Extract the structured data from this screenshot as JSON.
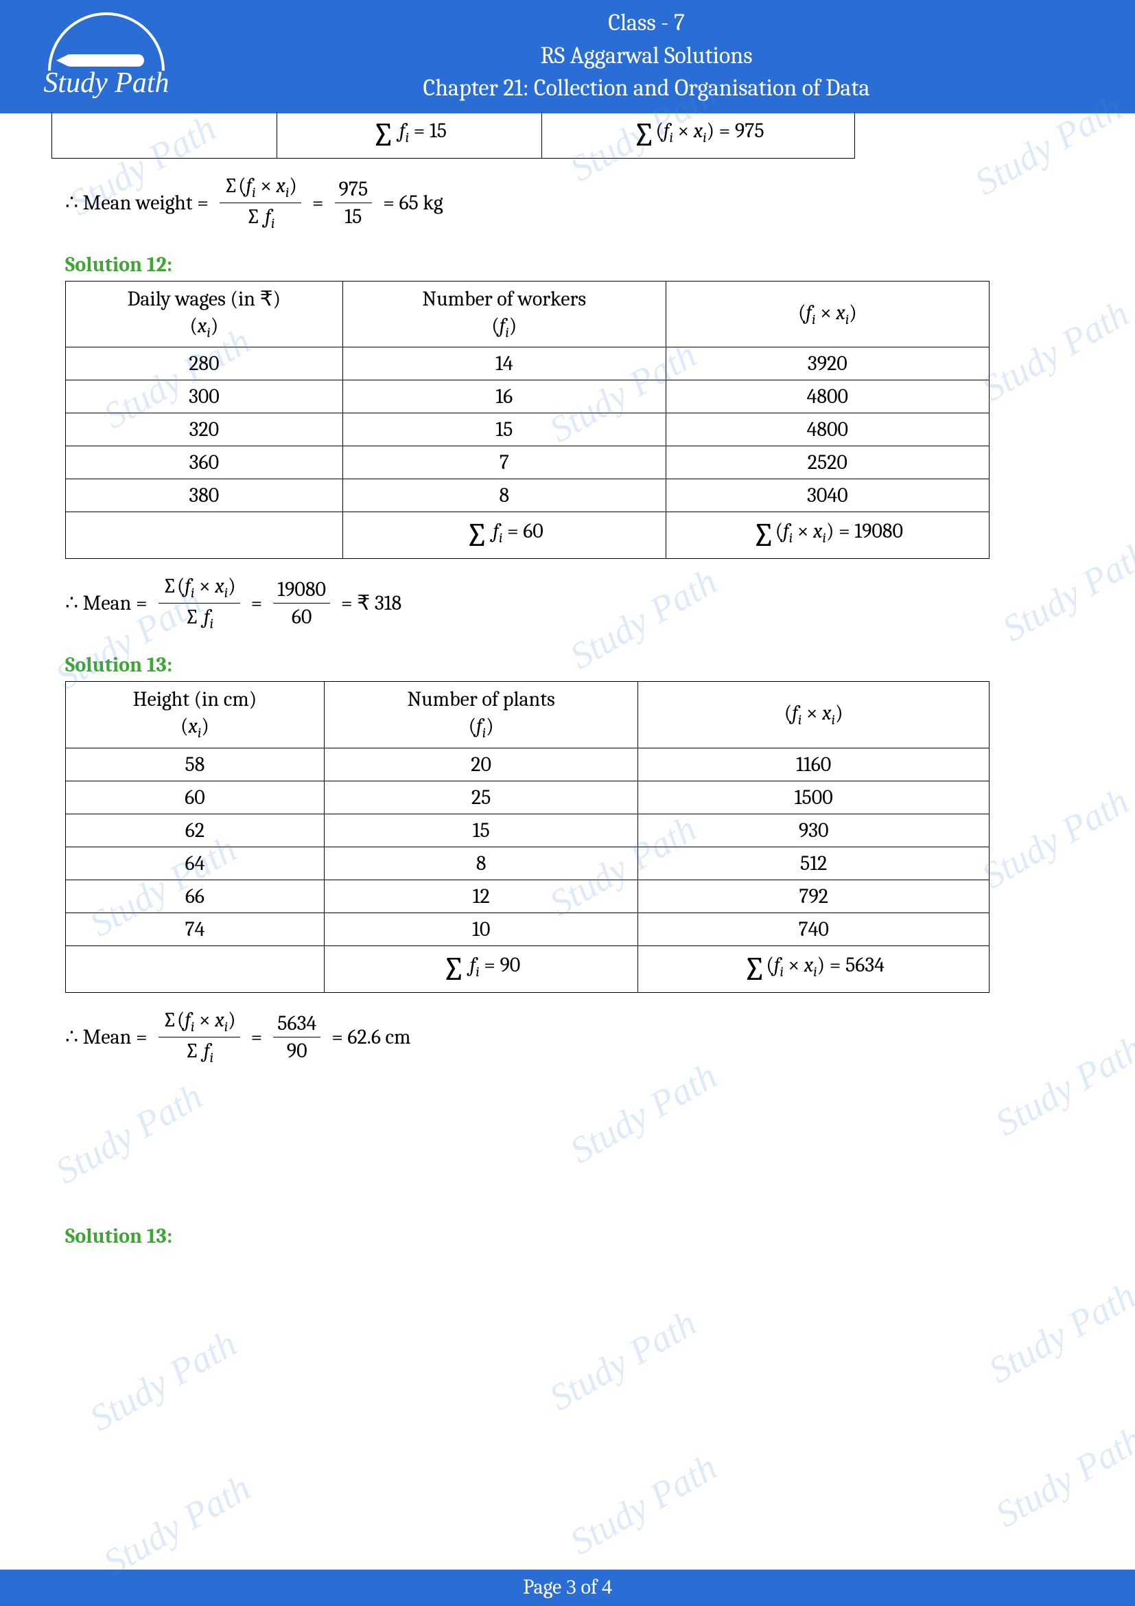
{
  "header": {
    "logo_text": "Study Path",
    "line1": "Class - 7",
    "line2": "RS Aggarwal Solutions",
    "line3": "Chapter 21: Collection and Organisation of Data"
  },
  "partial_table": {
    "sum_fi": "15",
    "sum_fixi": "975"
  },
  "formula11": {
    "prefix": "∴ Mean weight =",
    "num1_text": "Σ(fᵢ × xᵢ)",
    "den1_text": "Σ fᵢ",
    "num2": "975",
    "den2": "15",
    "result": "= 65 kg"
  },
  "solution12": {
    "heading": "Solution 12:",
    "col1_label": "Daily wages (in ₹)",
    "col1_sub": "(xᵢ)",
    "col2_label": "Number of workers",
    "col2_sub": "(fᵢ)",
    "col3_label": "(fᵢ × xᵢ)",
    "rows": [
      {
        "x": "280",
        "f": "14",
        "fx": "3920"
      },
      {
        "x": "300",
        "f": "16",
        "fx": "4800"
      },
      {
        "x": "320",
        "f": "15",
        "fx": "4800"
      },
      {
        "x": "360",
        "f": "7",
        "fx": "2520"
      },
      {
        "x": "380",
        "f": "8",
        "fx": "3040"
      }
    ],
    "sum_fi": "60",
    "sum_fixi": "19080",
    "formula": {
      "prefix": "∴ Mean =",
      "num2": "19080",
      "den2": "60",
      "result": "= ₹ 318"
    }
  },
  "solution13": {
    "heading": "Solution 13:",
    "col1_label": "Height (in cm)",
    "col1_sub": "(xᵢ)",
    "col2_label": "Number of plants",
    "col2_sub": "(fᵢ)",
    "col3_label": "(fᵢ × xᵢ)",
    "rows": [
      {
        "x": "58",
        "f": "20",
        "fx": "1160"
      },
      {
        "x": "60",
        "f": "25",
        "fx": "1500"
      },
      {
        "x": "62",
        "f": "15",
        "fx": "930"
      },
      {
        "x": "64",
        "f": "8",
        "fx": "512"
      },
      {
        "x": "66",
        "f": "12",
        "fx": "792"
      },
      {
        "x": "74",
        "f": "10",
        "fx": "740"
      }
    ],
    "sum_fi": "90",
    "sum_fixi": "5634",
    "formula": {
      "prefix": "∴ Mean =",
      "num2": "5634",
      "den2": "90",
      "result": "= 62.6 cm"
    }
  },
  "solution13b_heading": "Solution 13:",
  "footer": {
    "prefix": "Page ",
    "current": "3",
    "of": " of ",
    "total": "4"
  },
  "watermark_text": "Study Path",
  "colors": {
    "header_bg": "#2a6dd4",
    "heading_green": "#3fa535",
    "watermark": "rgba(77,141,221,0.18)"
  }
}
